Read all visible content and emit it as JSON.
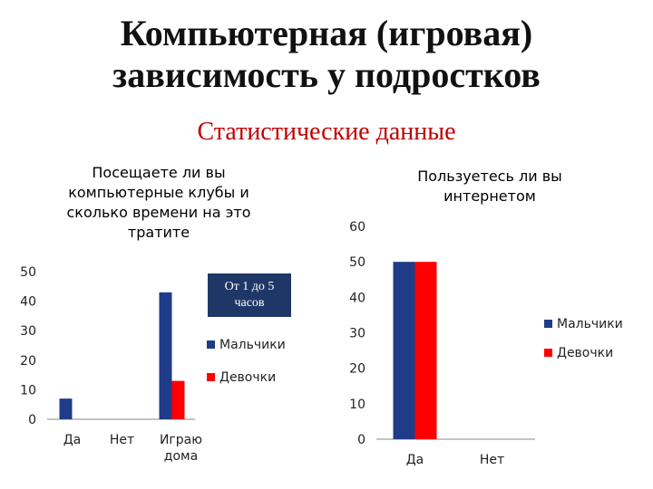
{
  "slide": {
    "title_line1": "Компьютерная (игровая)",
    "title_line2": "зависимость у подростков",
    "subtitle": "Статистические данные"
  },
  "chart_data": [
    {
      "type": "bar",
      "title": "Посещаете ли вы компьютерные клубы и сколько времени на это тратите",
      "categories": [
        "Да",
        "Нет",
        "Играю дома"
      ],
      "series": [
        {
          "name": "Мальчики",
          "values": [
            7,
            0,
            43
          ],
          "color": "#1f3c88"
        },
        {
          "name": "Девочки",
          "values": [
            0,
            0,
            13
          ],
          "color": "#ff0000"
        }
      ],
      "ylim": [
        0,
        50
      ],
      "yticks": [
        0,
        10,
        20,
        30,
        40,
        50
      ],
      "annotation": "От 1 до 5 часов",
      "legend": "right"
    },
    {
      "type": "bar",
      "title": "Пользуетесь ли вы интернетом",
      "categories": [
        "Да",
        "Нет"
      ],
      "series": [
        {
          "name": "Мальчики",
          "values": [
            50,
            0
          ],
          "color": "#1f3c88"
        },
        {
          "name": "Девочки",
          "values": [
            50,
            0
          ],
          "color": "#ff0000"
        }
      ],
      "ylim": [
        0,
        60
      ],
      "yticks": [
        0,
        10,
        20,
        30,
        40,
        50,
        60
      ],
      "legend": "right"
    }
  ]
}
